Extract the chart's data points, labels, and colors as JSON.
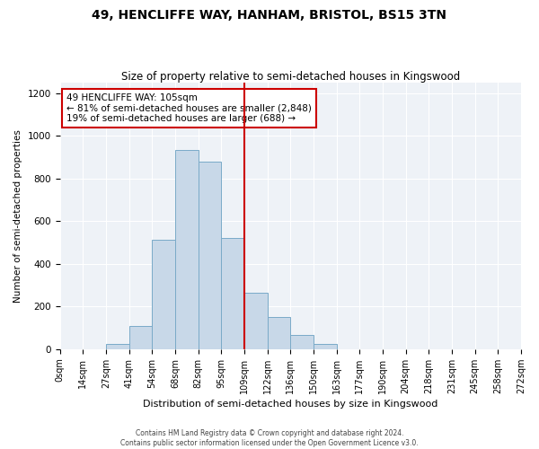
{
  "title": "49, HENCLIFFE WAY, HANHAM, BRISTOL, BS15 3TN",
  "subtitle": "Size of property relative to semi-detached houses in Kingswood",
  "xlabel": "Distribution of semi-detached houses by size in Kingswood",
  "ylabel": "Number of semi-detached properties",
  "bin_labels": [
    "0sqm",
    "14sqm",
    "27sqm",
    "41sqm",
    "54sqm",
    "68sqm",
    "82sqm",
    "95sqm",
    "109sqm",
    "122sqm",
    "136sqm",
    "150sqm",
    "163sqm",
    "177sqm",
    "190sqm",
    "204sqm",
    "218sqm",
    "231sqm",
    "245sqm",
    "258sqm",
    "272sqm"
  ],
  "n_bins": 20,
  "bar_heights": [
    0,
    0,
    25,
    110,
    515,
    935,
    880,
    520,
    265,
    150,
    65,
    25,
    0,
    0,
    0,
    0,
    0,
    0,
    0,
    0
  ],
  "property_line_bin": 8,
  "bar_color": "#c8d8e8",
  "bar_edgecolor": "#7aaac8",
  "line_color": "#cc0000",
  "annotation_text_line1": "49 HENCLIFFE WAY: 105sqm",
  "annotation_text_line2": "← 81% of semi-detached houses are smaller (2,848)",
  "annotation_text_line3": "19% of semi-detached houses are larger (688) →",
  "annotation_box_edgecolor": "#cc0000",
  "footer_line1": "Contains HM Land Registry data © Crown copyright and database right 2024.",
  "footer_line2": "Contains public sector information licensed under the Open Government Licence v3.0.",
  "ylim": [
    0,
    1250
  ],
  "yticks": [
    0,
    200,
    400,
    600,
    800,
    1000,
    1200
  ],
  "background_color": "#eef2f7",
  "grid_color": "#ffffff",
  "title_fontsize": 10,
  "subtitle_fontsize": 8.5,
  "ylabel_fontsize": 7.5,
  "xlabel_fontsize": 8,
  "tick_fontsize": 7,
  "annotation_fontsize": 7.5,
  "footer_fontsize": 5.5
}
